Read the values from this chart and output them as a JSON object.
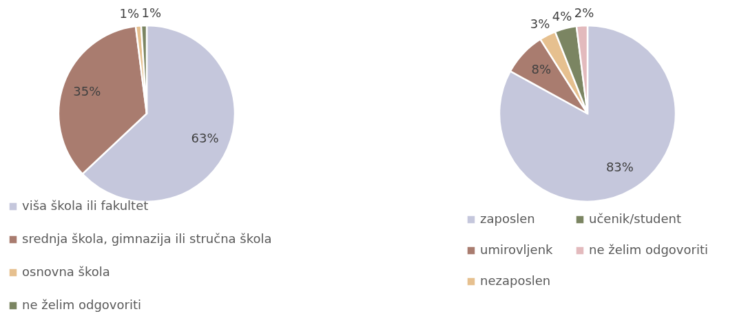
{
  "chart_data": [
    {
      "type": "pie",
      "categories": [
        "viša škola ili fakultet",
        "srednja škola, gimnazija ili stručna škola",
        "osnovna škola",
        "ne želim odgovoriti"
      ],
      "values": [
        63,
        35,
        1,
        1
      ],
      "colors": [
        "#c5c7dc",
        "#a97c6f",
        "#e6c08f",
        "#7b8562"
      ],
      "value_labels": [
        "63%",
        "35%",
        "1%",
        "1%"
      ],
      "legend": "bottom"
    },
    {
      "type": "pie",
      "categories": [
        "zaposlen",
        "umirovljenk",
        "nezaposlen",
        "učenik/student",
        "ne želim odgovoriti"
      ],
      "values": [
        83,
        8,
        3,
        4,
        2
      ],
      "colors": [
        "#c5c7dc",
        "#a97c6f",
        "#e6c08f",
        "#7b8562",
        "#e3babd"
      ],
      "value_labels": [
        "83%",
        "8%",
        "3%",
        "4%",
        "2%"
      ],
      "legend": "bottom"
    }
  ]
}
